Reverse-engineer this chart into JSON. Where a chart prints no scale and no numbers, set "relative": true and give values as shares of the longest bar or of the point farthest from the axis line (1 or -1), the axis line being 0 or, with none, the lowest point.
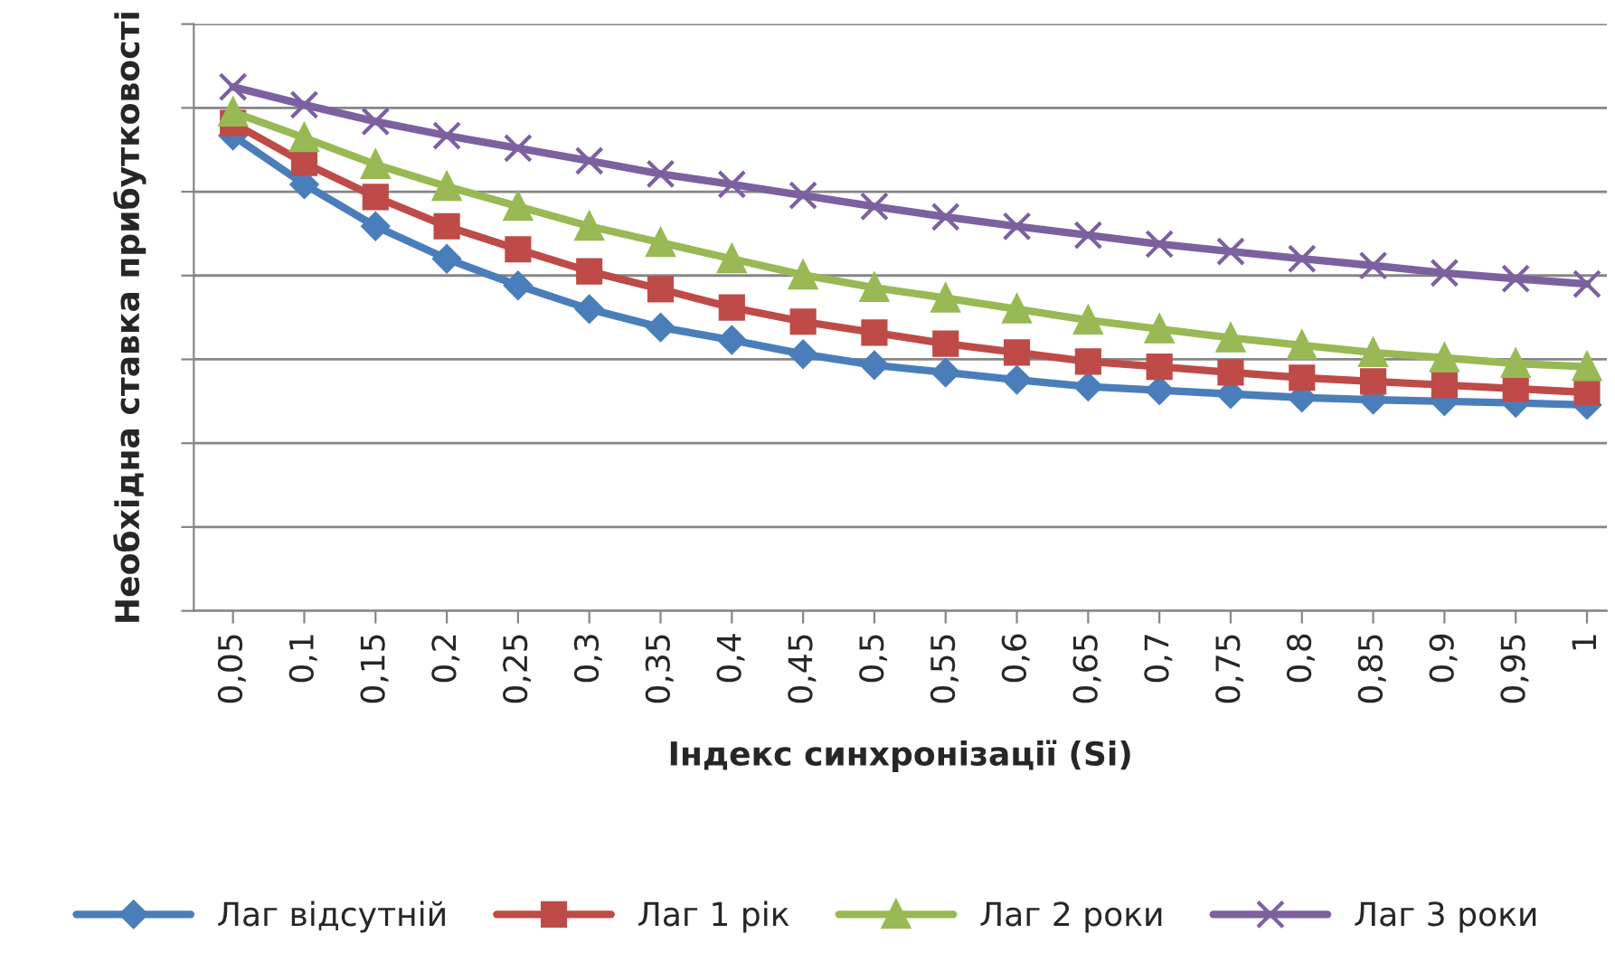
{
  "chart_data": {
    "type": "line",
    "relative": true,
    "xlabel": "Індекс синхронізації (Si)",
    "ylabel": "Необхідна ставка прибутковості",
    "categories": [
      "0,05",
      "0,1",
      "0,15",
      "0,2",
      "0,25",
      "0,3",
      "0,35",
      "0,4",
      "0,45",
      "0,5",
      "0,55",
      "0,6",
      "0,65",
      "0,7",
      "0,75",
      "0,8",
      "0,85",
      "0,9",
      "0,95",
      "1"
    ],
    "series": [
      {
        "name": "Лаг відсутній",
        "color": "#4a7ebb",
        "marker": "diamond",
        "values": [
          0.907,
          0.814,
          0.734,
          0.672,
          0.621,
          0.576,
          0.541,
          0.517,
          0.49,
          0.469,
          0.455,
          0.441,
          0.428,
          0.421,
          0.414,
          0.407,
          0.403,
          0.4,
          0.397,
          0.393
        ]
      },
      {
        "name": "Лаг 1 рік",
        "color": "#be4b48",
        "marker": "square",
        "values": [
          0.931,
          0.855,
          0.79,
          0.734,
          0.69,
          0.648,
          0.614,
          0.579,
          0.552,
          0.531,
          0.51,
          0.493,
          0.476,
          0.466,
          0.455,
          0.445,
          0.438,
          0.431,
          0.424,
          0.417
        ]
      },
      {
        "name": "Лаг 2 роки",
        "color": "#98b954",
        "marker": "triangle",
        "values": [
          0.952,
          0.903,
          0.852,
          0.81,
          0.772,
          0.734,
          0.703,
          0.672,
          0.641,
          0.617,
          0.597,
          0.576,
          0.555,
          0.538,
          0.521,
          0.507,
          0.493,
          0.483,
          0.472,
          0.466
        ]
      },
      {
        "name": "Лаг 3 роки",
        "color": "#7d60a0",
        "marker": "cross",
        "values": [
          1.0,
          0.966,
          0.934,
          0.907,
          0.883,
          0.859,
          0.834,
          0.814,
          0.793,
          0.772,
          0.752,
          0.734,
          0.717,
          0.7,
          0.686,
          0.672,
          0.659,
          0.645,
          0.634,
          0.624
        ]
      }
    ],
    "grid": "y",
    "legend": "bottom",
    "tick_labels": "x",
    "line_style": "solid"
  }
}
